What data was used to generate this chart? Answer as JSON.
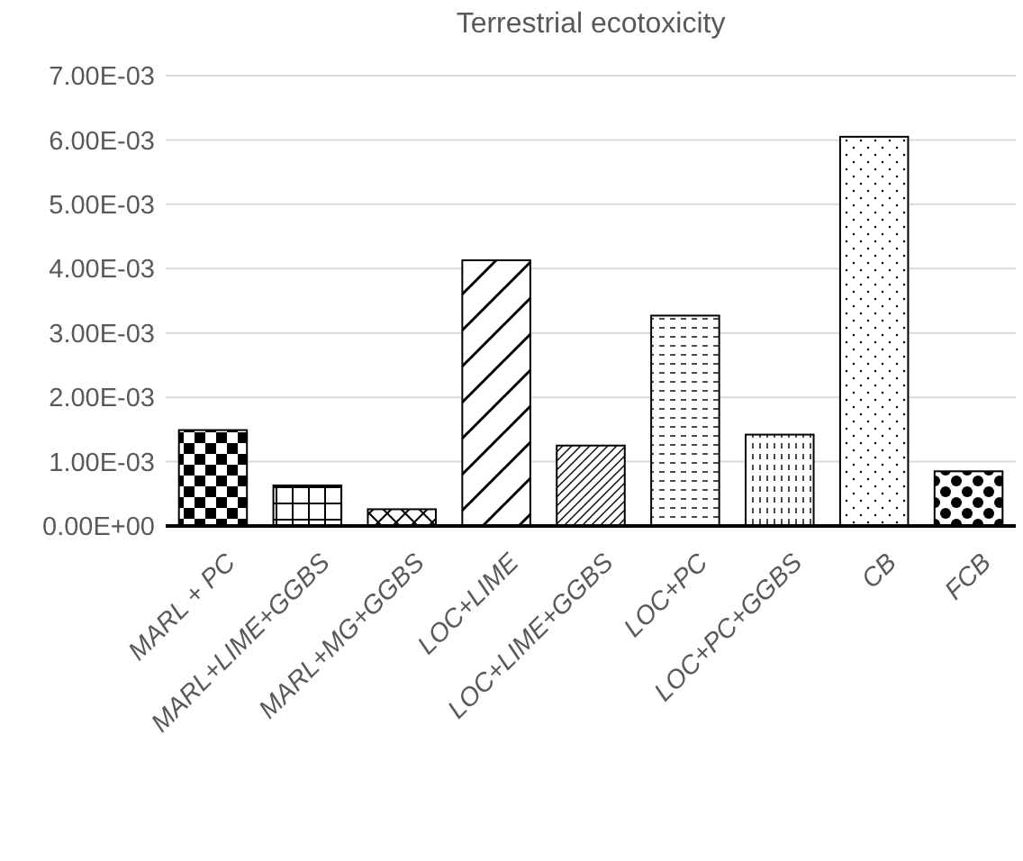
{
  "chart_data": {
    "type": "bar",
    "title": "Terrestrial ecotoxicity",
    "categories": [
      "MARL + PC",
      "MARL+LIME+GGBS",
      "MARL+MG+GGBS",
      "LOC+LIME",
      "LOC+LIME+GGBS",
      "LOC+PC",
      "LOC+PC+GGBS",
      "CB",
      "FCB"
    ],
    "values": [
      0.00149,
      0.00063,
      0.00026,
      0.00413,
      0.00125,
      0.00327,
      0.00142,
      0.00605,
      0.00085
    ],
    "colors": [
      "#ffffff",
      "#ffffff",
      "#ffffff",
      "#ffffff",
      "#ffffff",
      "#ffffff",
      "#ffffff",
      "#ffffff",
      "#ffffff"
    ],
    "ylim": [
      0,
      0.007
    ],
    "yticks": [
      {
        "value": 0,
        "label": "0.00E+00"
      },
      {
        "value": 0.001,
        "label": "1.00E-03"
      },
      {
        "value": 0.002,
        "label": "2.00E-03"
      },
      {
        "value": 0.003,
        "label": "3.00E-03"
      },
      {
        "value": 0.004,
        "label": "4.00E-03"
      },
      {
        "value": 0.005,
        "label": "5.00E-03"
      },
      {
        "value": 0.006,
        "label": "6.00E-03"
      },
      {
        "value": 0.007,
        "label": "7.00E-03"
      }
    ],
    "grid": "y"
  }
}
